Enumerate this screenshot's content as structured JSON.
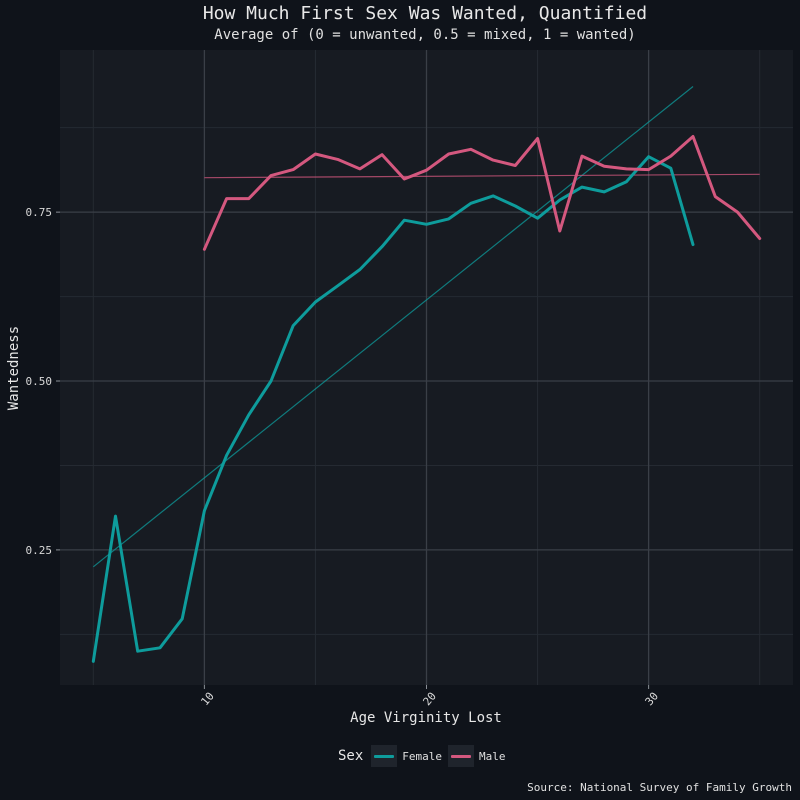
{
  "chart_data": {
    "type": "line",
    "title": "How Much First Sex Was Wanted, Quantified",
    "subtitle": "Average of (0 = unwanted, 0.5 = mixed, 1 = wanted)",
    "xlabel": "Age Virginity Lost",
    "ylabel": "Wantedness",
    "caption": "Source: National Survey of Family Growth",
    "xlim": [
      3.5,
      36.5
    ],
    "ylim": [
      0.05,
      0.99
    ],
    "x_ticks": [
      "10",
      "20",
      "30"
    ],
    "y_ticks": [
      "0.25",
      "0.50",
      "0.75"
    ],
    "legend": {
      "title": "Sex",
      "position": "bottom"
    },
    "grid": true,
    "series": [
      {
        "name": "Female",
        "color": "#0e9c9c",
        "x": [
          5,
          6,
          7,
          8,
          9,
          10,
          11,
          12,
          13,
          14,
          15,
          16,
          17,
          18,
          19,
          20,
          21,
          22,
          23,
          24,
          25,
          26,
          27,
          28,
          29,
          30,
          31,
          32
        ],
        "y": [
          0.085,
          0.3,
          0.1,
          0.105,
          0.148,
          0.308,
          0.39,
          0.45,
          0.5,
          0.582,
          0.617,
          0.641,
          0.665,
          0.699,
          0.738,
          0.732,
          0.74,
          0.763,
          0.774,
          0.759,
          0.741,
          0.768,
          0.787,
          0.78,
          0.795,
          0.832,
          0.815,
          0.702
        ],
        "trend": {
          "x": [
            5,
            32
          ],
          "y": [
            0.225,
            0.936
          ]
        }
      },
      {
        "name": "Male",
        "color": "#d4587f",
        "x": [
          10,
          11,
          12,
          13,
          14,
          15,
          16,
          17,
          18,
          19,
          20,
          21,
          22,
          23,
          24,
          25,
          26,
          27,
          28,
          29,
          30,
          31,
          32,
          33,
          34,
          35
        ],
        "y": [
          0.695,
          0.77,
          0.77,
          0.804,
          0.813,
          0.836,
          0.828,
          0.814,
          0.835,
          0.799,
          0.812,
          0.836,
          0.843,
          0.827,
          0.819,
          0.859,
          0.722,
          0.833,
          0.818,
          0.814,
          0.813,
          0.833,
          0.862,
          0.773,
          0.75,
          0.711
        ],
        "trend": {
          "x": [
            10,
            35
          ],
          "y": [
            0.801,
            0.806
          ]
        }
      }
    ]
  }
}
